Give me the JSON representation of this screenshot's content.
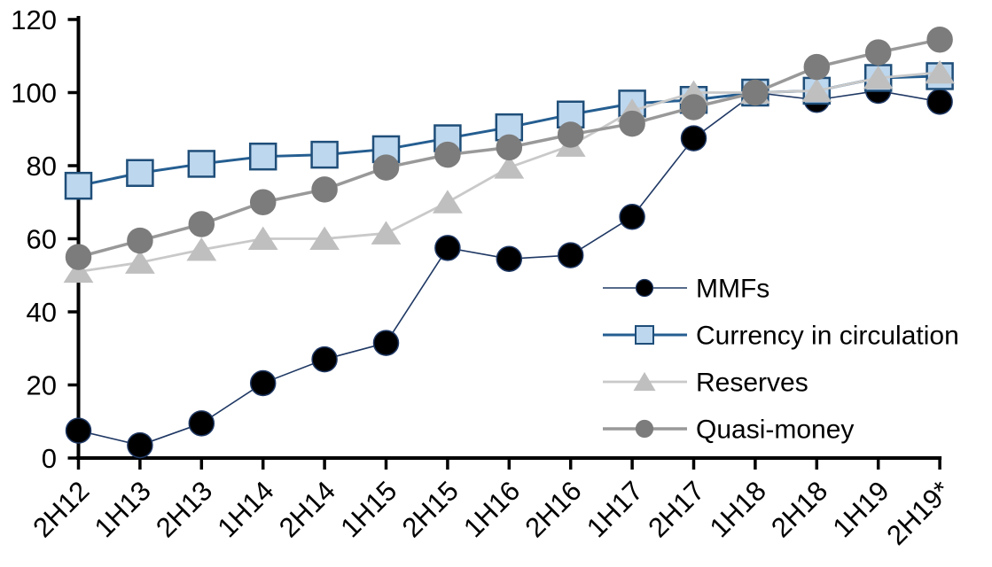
{
  "chart_data": {
    "type": "line",
    "title": "",
    "xlabel": "",
    "ylabel": "",
    "categories": [
      "2H12",
      "1H13",
      "2H13",
      "1H14",
      "2H14",
      "1H15",
      "2H15",
      "1H16",
      "2H16",
      "1H17",
      "2H17",
      "1H18",
      "2H18",
      "1H19",
      "2H19*"
    ],
    "y_axis": {
      "min": 0,
      "max": 120,
      "tick_step": 20,
      "ticks": [
        0,
        20,
        40,
        60,
        80,
        100,
        120
      ]
    },
    "grid": false,
    "legend_position": "middle-right",
    "axis_color": "#000000",
    "series": [
      {
        "name": "MMFs",
        "marker": "circle",
        "line_color": "#1F3864",
        "marker_fill": "#000000",
        "marker_stroke": "#1F3864",
        "line_width": 1.6,
        "values": [
          7.5,
          3.5,
          9.5,
          20.5,
          27,
          31.5,
          57.5,
          54.5,
          55.5,
          66,
          87.5,
          100,
          98,
          100.5,
          97.5
        ]
      },
      {
        "name": "Currency in circulation",
        "marker": "square",
        "line_color": "#255E91",
        "marker_fill": "#BDD7EE",
        "marker_stroke": "#1F4E79",
        "line_width": 3,
        "values": [
          74.5,
          78,
          80.5,
          82.5,
          83,
          84.5,
          87.5,
          90.5,
          94,
          97,
          98,
          100,
          100.5,
          104,
          104.5
        ]
      },
      {
        "name": "Reserves",
        "marker": "triangle",
        "line_color": "#C9C9C9",
        "marker_fill": "#BFBFBF",
        "marker_stroke": "#BFBFBF",
        "line_width": 2.8,
        "values": [
          51,
          53.5,
          57,
          60,
          60,
          61.5,
          70,
          79.5,
          85.5,
          95,
          100,
          100,
          100.5,
          104,
          105.5
        ]
      },
      {
        "name": "Quasi-money",
        "marker": "circle",
        "line_color": "#999999",
        "marker_fill": "#7C7C7C",
        "marker_stroke": "#7C7C7C",
        "line_width": 3.5,
        "values": [
          55,
          59.5,
          64,
          70,
          73.5,
          79.5,
          83,
          85,
          88.5,
          91.5,
          96,
          100,
          107,
          111,
          114.5
        ]
      }
    ]
  }
}
